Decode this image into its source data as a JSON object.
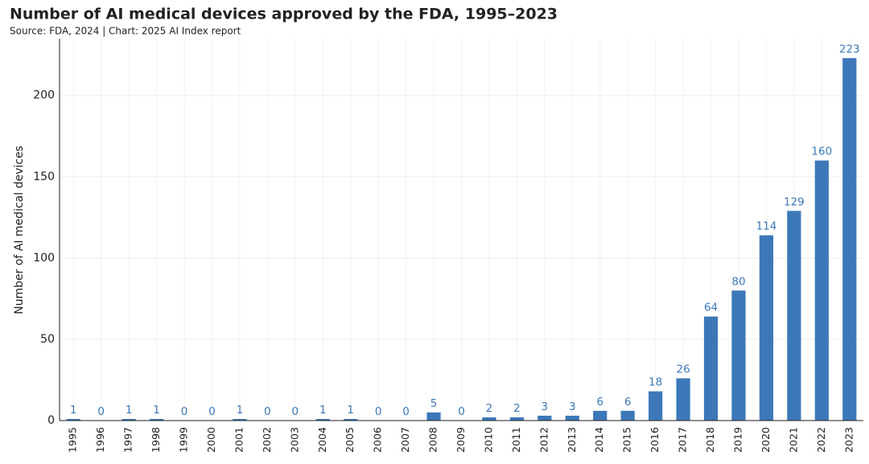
{
  "chart_data": {
    "type": "bar",
    "title": "Number of AI medical devices approved by the FDA, 1995–2023",
    "subtitle": "Source: FDA, 2024 | Chart: 2025 AI Index report",
    "y_label": "Number of AI medical devices",
    "categories": [
      "1995",
      "1996",
      "1997",
      "1998",
      "1999",
      "2000",
      "2001",
      "2002",
      "2003",
      "2004",
      "2005",
      "2006",
      "2007",
      "2008",
      "2009",
      "2010",
      "2011",
      "2012",
      "2013",
      "2014",
      "2015",
      "2016",
      "2017",
      "2018",
      "2019",
      "2020",
      "2021",
      "2022",
      "2023"
    ],
    "values": [
      1,
      0,
      1,
      1,
      0,
      0,
      1,
      0,
      0,
      1,
      1,
      0,
      0,
      5,
      0,
      2,
      2,
      3,
      3,
      6,
      6,
      18,
      26,
      64,
      80,
      114,
      129,
      160,
      223
    ],
    "color": "#3c78b8",
    "ylim": [
      0,
      235
    ],
    "yticks": [
      0,
      50,
      100,
      150,
      200
    ],
    "grid": true
  }
}
